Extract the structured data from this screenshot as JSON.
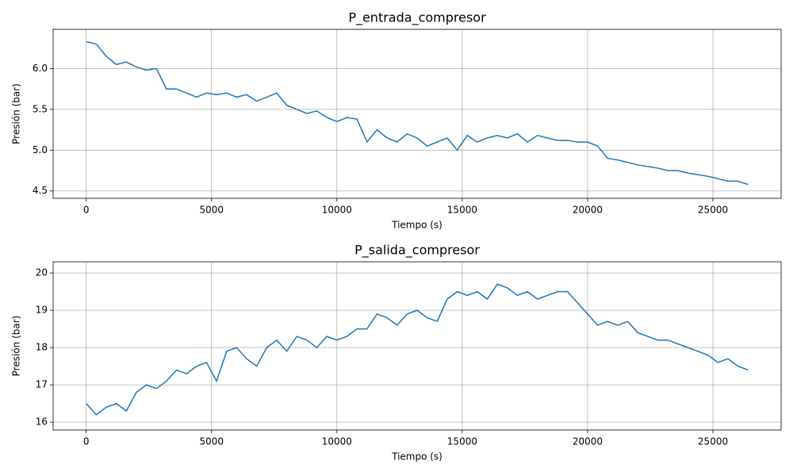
{
  "chart_data": [
    {
      "type": "line",
      "title": "P_entrada_compresor",
      "xlabel": "Tiempo (s)",
      "ylabel": "Presión (bar)",
      "color": "#1f77b4",
      "grid": true,
      "x": [
        0,
        400,
        800,
        1200,
        1600,
        2000,
        2400,
        2800,
        3200,
        3600,
        4000,
        4400,
        4800,
        5200,
        5600,
        6000,
        6400,
        6800,
        7200,
        7600,
        8000,
        8400,
        8800,
        9200,
        9600,
        10000,
        10400,
        10800,
        11200,
        11600,
        12000,
        12400,
        12800,
        13200,
        13600,
        14000,
        14400,
        14800,
        15200,
        15600,
        16000,
        16400,
        16800,
        17200,
        17600,
        18000,
        18400,
        18800,
        19200,
        19600,
        20000,
        20400,
        20800,
        21200,
        21600,
        22000,
        22400,
        22800,
        23200,
        23600,
        24000,
        24400,
        24800,
        25200,
        25600,
        26000,
        26400
      ],
      "values": [
        6.33,
        6.3,
        6.15,
        6.05,
        6.08,
        6.02,
        5.98,
        6.0,
        5.75,
        5.75,
        5.7,
        5.65,
        5.7,
        5.68,
        5.7,
        5.65,
        5.68,
        5.6,
        5.65,
        5.7,
        5.55,
        5.5,
        5.45,
        5.48,
        5.4,
        5.35,
        5.4,
        5.38,
        5.1,
        5.25,
        5.15,
        5.1,
        5.2,
        5.15,
        5.05,
        5.1,
        5.15,
        5.0,
        5.18,
        5.1,
        5.15,
        5.18,
        5.15,
        5.2,
        5.1,
        5.18,
        5.15,
        5.12,
        5.12,
        5.1,
        5.1,
        5.05,
        4.9,
        4.88,
        4.85,
        4.82,
        4.8,
        4.78,
        4.75,
        4.75,
        4.72,
        4.7,
        4.68,
        4.65,
        4.62,
        4.62,
        4.58
      ],
      "xlim": [
        -1320,
        27720
      ],
      "xticks": [
        0,
        5000,
        10000,
        15000,
        20000,
        25000
      ],
      "ylim": [
        4.41,
        6.48
      ],
      "yticks": [
        4.5,
        {
          "value": 5,
          "label": "5.0"
        },
        5.5,
        {
          "value": 6,
          "label": "6.0"
        }
      ]
    },
    {
      "type": "line",
      "title": "P_salida_compresor",
      "xlabel": "Tiempo (s)",
      "ylabel": "Presión (bar)",
      "color": "#1f77b4",
      "grid": true,
      "x": [
        0,
        400,
        800,
        1200,
        1600,
        2000,
        2400,
        2800,
        3200,
        3600,
        4000,
        4400,
        4800,
        5200,
        5600,
        6000,
        6400,
        6800,
        7200,
        7600,
        8000,
        8400,
        8800,
        9200,
        9600,
        10000,
        10400,
        10800,
        11200,
        11600,
        12000,
        12400,
        12800,
        13200,
        13600,
        14000,
        14400,
        14800,
        15200,
        15600,
        16000,
        16400,
        16800,
        17200,
        17600,
        18000,
        18400,
        18800,
        19200,
        19600,
        20000,
        20400,
        20800,
        21200,
        21600,
        22000,
        22400,
        22800,
        23200,
        23600,
        24000,
        24400,
        24800,
        25200,
        25600,
        26000,
        26400
      ],
      "values": [
        16.5,
        16.2,
        16.4,
        16.5,
        16.3,
        16.8,
        17.0,
        16.9,
        17.1,
        17.4,
        17.3,
        17.5,
        17.6,
        17.1,
        17.9,
        18.0,
        17.7,
        17.5,
        18.0,
        18.2,
        17.9,
        18.3,
        18.2,
        18.0,
        18.3,
        18.2,
        18.3,
        18.5,
        18.5,
        18.9,
        18.8,
        18.6,
        18.9,
        19.0,
        18.8,
        18.7,
        19.3,
        19.5,
        19.4,
        19.5,
        19.3,
        19.7,
        19.6,
        19.4,
        19.5,
        19.3,
        19.4,
        19.5,
        19.5,
        19.2,
        18.9,
        18.6,
        18.7,
        18.6,
        18.7,
        18.4,
        18.3,
        18.2,
        18.2,
        18.1,
        18.0,
        17.9,
        17.8,
        17.6,
        17.7,
        17.5,
        17.4
      ],
      "xlim": [
        -1320,
        27720
      ],
      "xticks": [
        0,
        5000,
        10000,
        15000,
        20000,
        25000
      ],
      "ylim": [
        15.79,
        20.3
      ],
      "yticks": [
        16,
        17,
        18,
        19,
        20
      ]
    }
  ]
}
